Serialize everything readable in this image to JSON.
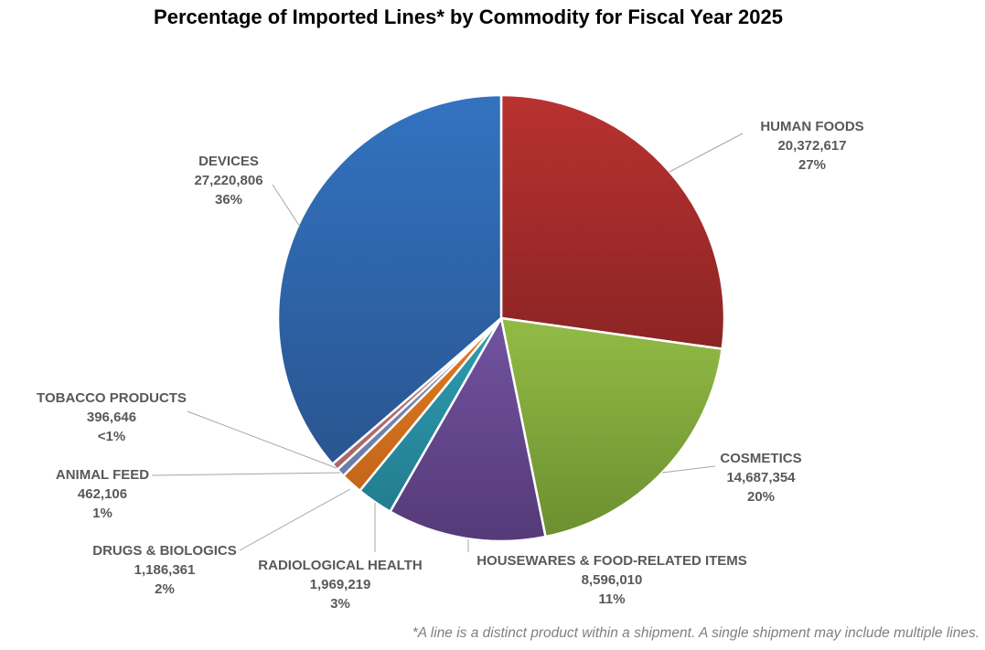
{
  "chart_data": {
    "type": "pie",
    "title": "Percentage of Imported Lines* by Commodity for Fiscal Year 2025",
    "footnote": "*A line is a distinct product within a shipment. A single shipment may include multiple lines.",
    "slices": [
      {
        "name": "HUMAN FOODS",
        "value": 20372617,
        "value_label": "20,372,617",
        "pct_label": "27%",
        "color": "#b83230",
        "color2": "#8c2424"
      },
      {
        "name": "COSMETICS",
        "value": 14687354,
        "value_label": "14,687,354",
        "pct_label": "20%",
        "color": "#92bb45",
        "color2": "#6d8f30"
      },
      {
        "name": "HOUSEWARES & FOOD-RELATED ITEMS",
        "value": 8596010,
        "value_label": "8,596,010",
        "pct_label": "11%",
        "color": "#7253a0",
        "color2": "#553a78"
      },
      {
        "name": "RADIOLOGICAL HEALTH",
        "value": 1969219,
        "value_label": "1,969,219",
        "pct_label": "3%",
        "color": "#2f9cb2",
        "color2": "#237d8f"
      },
      {
        "name": "DRUGS & BIOLOGICS",
        "value": 1186361,
        "value_label": "1,186,361",
        "pct_label": "2%",
        "color": "#e07a1f",
        "color2": "#c4661a"
      },
      {
        "name": "ANIMAL FEED",
        "value": 462106,
        "value_label": "462,106",
        "pct_label": "1%",
        "color": "#7d91bd",
        "color2": "#6a7ca6"
      },
      {
        "name": "TOBACCO PRODUCTS",
        "value": 396646,
        "value_label": "396,646",
        "pct_label": "<1%",
        "color": "#c07a7a",
        "color2": "#a86666"
      },
      {
        "name": "DEVICES",
        "value": 27220806,
        "value_label": "27,220,806",
        "pct_label": "36%",
        "color": "#3273c0",
        "color2": "#2a5590"
      }
    ]
  }
}
